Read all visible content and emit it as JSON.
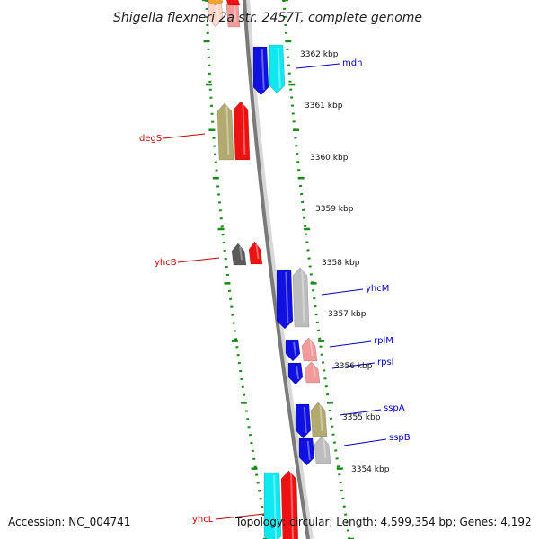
{
  "title": "Shigella flexneri 2a str. 2457T, complete genome",
  "accession": "Accession: NC_004741",
  "summary": "Topology: circular; Length: 4,599,354 bp; Genes: 4,192",
  "colors": {
    "backbone": "#7a7a7a",
    "dots": "#1a8a1a",
    "plus_label": "#0000cc",
    "minus_label": "#cc0000",
    "blue": "#1010e0",
    "cyan": "#10e8f0",
    "olive": "#b3aa70",
    "red": "#ee1111",
    "pink": "#f29a9a",
    "gray": "#bdbdbd",
    "darkgray": "#5a5a5a",
    "orange": "#f4a030",
    "peach": "#fbd8c8"
  },
  "ticks": [
    "3362 kbp",
    "3361 kbp",
    "3360 kbp",
    "3359 kbp",
    "3358 kbp",
    "3357 kbp",
    "3356 kbp",
    "3355 kbp",
    "3354 kbp"
  ],
  "gene_labels": {
    "mdh": "mdh",
    "degS": "degS",
    "yhcB": "yhcB",
    "yhcM": "yhcM",
    "rplM": "rplM",
    "rpsI": "rpsI",
    "sspA": "sspA",
    "sspB": "sspB",
    "yhcL": "yhcL"
  }
}
